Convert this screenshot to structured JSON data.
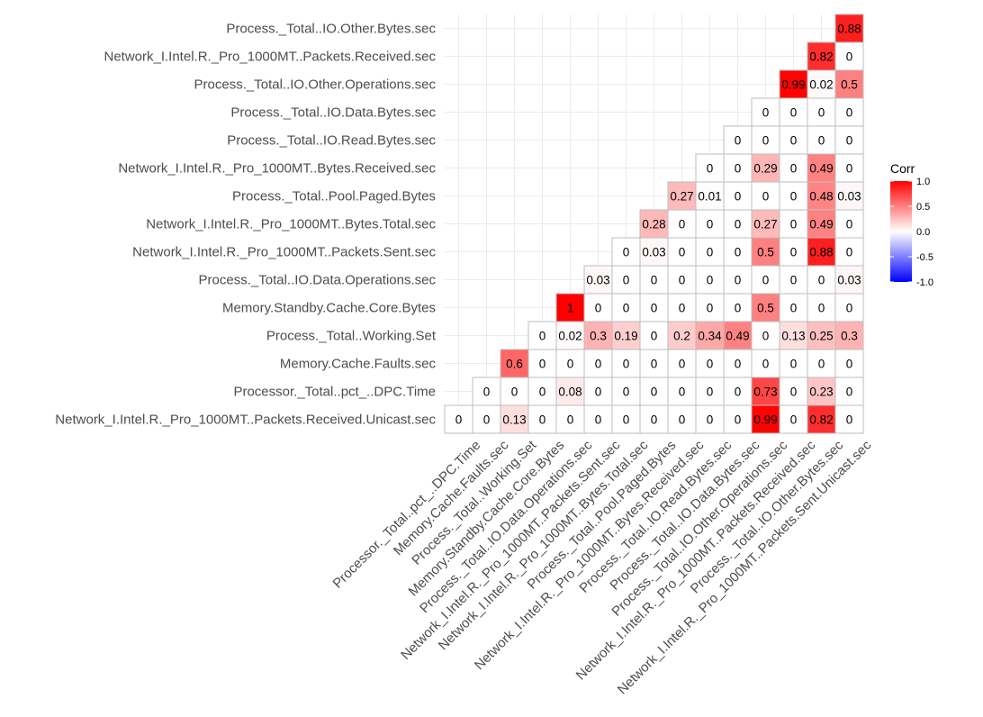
{
  "chart_data": {
    "type": "heatmap",
    "variables": [
      "Network_I.Intel.R._Pro_1000MT..Packets.Received.Unicast.sec",
      "Processor._Total..pct_..DPC.Time",
      "Memory.Cache.Faults.sec",
      "Process._Total..Working.Set",
      "Memory.Standby.Cache.Core.Bytes",
      "Process._Total..IO.Data.Operations.sec",
      "Network_I.Intel.R._Pro_1000MT..Packets.Sent.sec",
      "Network_I.Intel.R._Pro_1000MT..Bytes.Total.sec",
      "Process._Total..Pool.Paged.Bytes",
      "Network_I.Intel.R._Pro_1000MT..Bytes.Received.sec",
      "Process._Total..IO.Read.Bytes.sec",
      "Process._Total..IO.Data.Bytes.sec",
      "Process._Total..IO.Other.Operations.sec",
      "Network_I.Intel.R._Pro_1000MT..Packets.Received.sec",
      "Process._Total..IO.Other.Bytes.sec",
      "Network_I.Intel.R._Pro_1000MT..Packets.Sent.Unicast.sec"
    ],
    "y_labels": [
      "Network_I.Intel.R._Pro_1000MT..Packets.Received.Unicast.sec",
      "Processor._Total..pct_..DPC.Time",
      "Memory.Cache.Faults.sec",
      "Process._Total..Working.Set",
      "Memory.Standby.Cache.Core.Bytes",
      "Process._Total..IO.Data.Operations.sec",
      "Network_I.Intel.R._Pro_1000MT..Packets.Sent.sec",
      "Network_I.Intel.R._Pro_1000MT..Bytes.Total.sec",
      "Process._Total..Pool.Paged.Bytes",
      "Network_I.Intel.R._Pro_1000MT..Bytes.Received.sec",
      "Process._Total..IO.Read.Bytes.sec",
      "Process._Total..IO.Data.Bytes.sec",
      "Process._Total..IO.Other.Operations.sec",
      "Network_I.Intel.R._Pro_1000MT..Packets.Received.sec",
      "Process._Total..IO.Other.Bytes.sec"
    ],
    "x_labels": [
      "Processor._Total..pct_..DPC.Time",
      "Memory.Cache.Faults.sec",
      "Process._Total..Working.Set",
      "Memory.Standby.Cache.Core.Bytes",
      "Process._Total..IO.Data.Operations.sec",
      "Network_I.Intel.R._Pro_1000MT..Packets.Sent.sec",
      "Network_I.Intel.R._Pro_1000MT..Bytes.Total.sec",
      "Process._Total..Pool.Paged.Bytes",
      "Network_I.Intel.R._Pro_1000MT..Bytes.Received.sec",
      "Process._Total..IO.Read.Bytes.sec",
      "Process._Total..IO.Data.Bytes.sec",
      "Process._Total..IO.Other.Operations.sec",
      "Network_I.Intel.R._Pro_1000MT..Packets.Received.sec",
      "Process._Total..IO.Other.Bytes.sec",
      "Network_I.Intel.R._Pro_1000MT..Packets.Sent.Unicast.sec"
    ],
    "cell_labels": [
      [
        "0",
        "0",
        "0.13",
        "0",
        "0",
        "0",
        "0",
        "0",
        "0",
        "0",
        "0",
        "0.99",
        "0",
        "0.82",
        "0"
      ],
      [
        "0",
        "0",
        "0",
        "0.08",
        "0",
        "0",
        "0",
        "0",
        "0",
        "0",
        "0.73",
        "0",
        "0.23",
        "0"
      ],
      [
        "0.6",
        "0",
        "0",
        "0",
        "0",
        "0",
        "0",
        "0",
        "0",
        "0",
        "0",
        "0",
        "0"
      ],
      [
        "0",
        "0.02",
        "0.3",
        "0.19",
        "0",
        "0.2",
        "0.34",
        "0.49",
        "0",
        "0.13",
        "0.25",
        "0.3"
      ],
      [
        "1",
        "0",
        "0",
        "0",
        "0",
        "0",
        "0",
        "0.5",
        "0",
        "0",
        "0"
      ],
      [
        "0.03",
        "0",
        "0",
        "0",
        "0",
        "0",
        "0",
        "0",
        "0",
        "0.03"
      ],
      [
        "0",
        "0.03",
        "0",
        "0",
        "0",
        "0.5",
        "0",
        "0.88",
        "0"
      ],
      [
        "0.28",
        "0",
        "0",
        "0",
        "0.27",
        "0",
        "0.49",
        "0"
      ],
      [
        "0.27",
        "0.01",
        "0",
        "0",
        "0",
        "0.48",
        "0.03"
      ],
      [
        "0",
        "0",
        "0.29",
        "0",
        "0.49",
        "0"
      ],
      [
        "0",
        "0",
        "0",
        "0",
        "0"
      ],
      [
        "0",
        "0",
        "0",
        "0"
      ],
      [
        "0.99",
        "0.02",
        "0.5"
      ],
      [
        "0.82",
        "0"
      ],
      [
        "0.88"
      ]
    ],
    "legend": {
      "title": "Corr",
      "ticks": [
        "1.0",
        "0.5",
        "0.0",
        "-0.5",
        "-1.0"
      ],
      "tick_values": [
        1.0,
        0.5,
        0.0,
        -0.5,
        -1.0
      ],
      "range": [
        -1.0,
        1.0
      ],
      "position": "right"
    },
    "colors": {
      "low": "#0000ff",
      "mid": "#ffffff",
      "high": "#ff0000",
      "cell_border": "#bdbdbd",
      "grid": "#ebebeb"
    },
    "grid": true
  }
}
